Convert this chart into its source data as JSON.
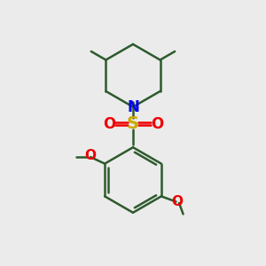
{
  "background_color": "#ebebeb",
  "bond_color": "#2d5a2d",
  "bond_width": 1.8,
  "n_color": "#0000ee",
  "s_color": "#ccaa00",
  "o_color": "#ee0000",
  "figsize": [
    3.0,
    3.0
  ],
  "dpi": 100,
  "xlim": [
    0,
    10
  ],
  "ylim": [
    0,
    10
  ]
}
